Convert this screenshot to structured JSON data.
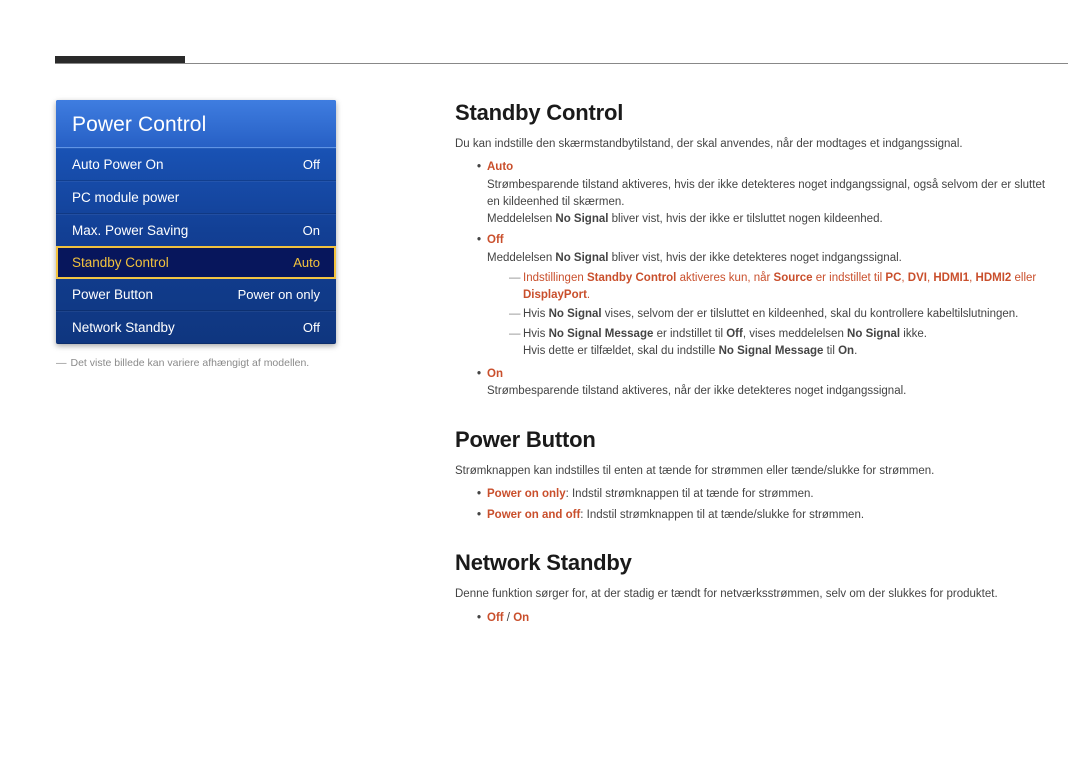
{
  "colors": {
    "accent": "#c94f2c",
    "menu_gradient_top": "#3f7de0",
    "menu_gradient_bottom": "#0f367f",
    "highlight_bg": "#07165c",
    "highlight_border": "#f2c23e"
  },
  "menu": {
    "title": "Power Control",
    "items": [
      {
        "label": "Auto Power On",
        "value": "Off",
        "highlight": false
      },
      {
        "label": "PC module power",
        "value": "",
        "highlight": false
      },
      {
        "label": "Max. Power Saving",
        "value": "On",
        "highlight": false
      },
      {
        "label": "Standby Control",
        "value": "Auto",
        "highlight": true
      },
      {
        "label": "Power Button",
        "value": "Power on only",
        "highlight": false
      },
      {
        "label": "Network Standby",
        "value": "Off",
        "highlight": false
      }
    ],
    "caption_dash": "―",
    "caption": "Det viste billede kan variere afhængigt af modellen."
  },
  "standby": {
    "heading": "Standby Control",
    "intro": "Du kan indstille den skærmstandbytilstand, der skal anvendes, når der modtages et indgangssignal.",
    "auto": {
      "label": "Auto",
      "p1a": "Strømbesparende tilstand aktiveres, hvis der ikke detekteres noget indgangssignal, også selvom der er sluttet en kildeenhed til skærmen.",
      "p2_pre": "Meddelelsen ",
      "p2_b": "No Signal",
      "p2_post": " bliver vist, hvis der ikke er tilsluttet nogen kildeenhed."
    },
    "off": {
      "label": "Off",
      "p1_pre": "Meddelelsen ",
      "p1_b": "No Signal",
      "p1_post": " bliver vist, hvis der ikke detekteres noget indgangssignal.",
      "sub1_pre": "Indstillingen ",
      "sub1_b1": "Standby Control",
      "sub1_mid1": " aktiveres kun, når ",
      "sub1_b2": "Source",
      "sub1_mid2": " er indstillet til ",
      "sub1_pc": "PC",
      "sub1_dvi": "DVI",
      "sub1_h1": "HDMI1",
      "sub1_h2": "HDMI2",
      "sub1_or": " eller ",
      "sub1_dp": "DisplayPort",
      "sub1_end": ".",
      "sub2_pre": "Hvis ",
      "sub2_b": "No Signal",
      "sub2_post": " vises, selvom der er tilsluttet en kildeenhed, skal du kontrollere kabeltilslutningen.",
      "sub3_pre": "Hvis ",
      "sub3_b1": "No Signal Message",
      "sub3_mid1": " er indstillet til ",
      "sub3_b2": "Off",
      "sub3_mid2": ", vises meddelelsen ",
      "sub3_b3": "No Signal",
      "sub3_end": " ikke.",
      "sub3_line2_pre": "Hvis dette er tilfældet, skal du indstille ",
      "sub3_line2_b1": "No Signal Message",
      "sub3_line2_mid": " til ",
      "sub3_line2_b2": "On",
      "sub3_line2_end": "."
    },
    "on": {
      "label": "On",
      "p1": "Strømbesparende tilstand aktiveres, når der ikke detekteres noget indgangssignal."
    }
  },
  "powerbutton": {
    "heading": "Power Button",
    "intro": "Strømknappen kan indstilles til enten at tænde for strømmen eller tænde/slukke for strømmen.",
    "opt1_b": "Power on only",
    "opt1_t": ": Indstil strømknappen til at tænde for strømmen.",
    "opt2_b": "Power on and off",
    "opt2_t": ": Indstil strømknappen til at tænde/slukke for strømmen."
  },
  "network": {
    "heading": "Network Standby",
    "intro": "Denne funktion sørger for, at der stadig er tændt for netværksstrømmen, selv om der slukkes for produktet.",
    "opt_off": "Off",
    "opt_slash": " / ",
    "opt_on": "On"
  }
}
